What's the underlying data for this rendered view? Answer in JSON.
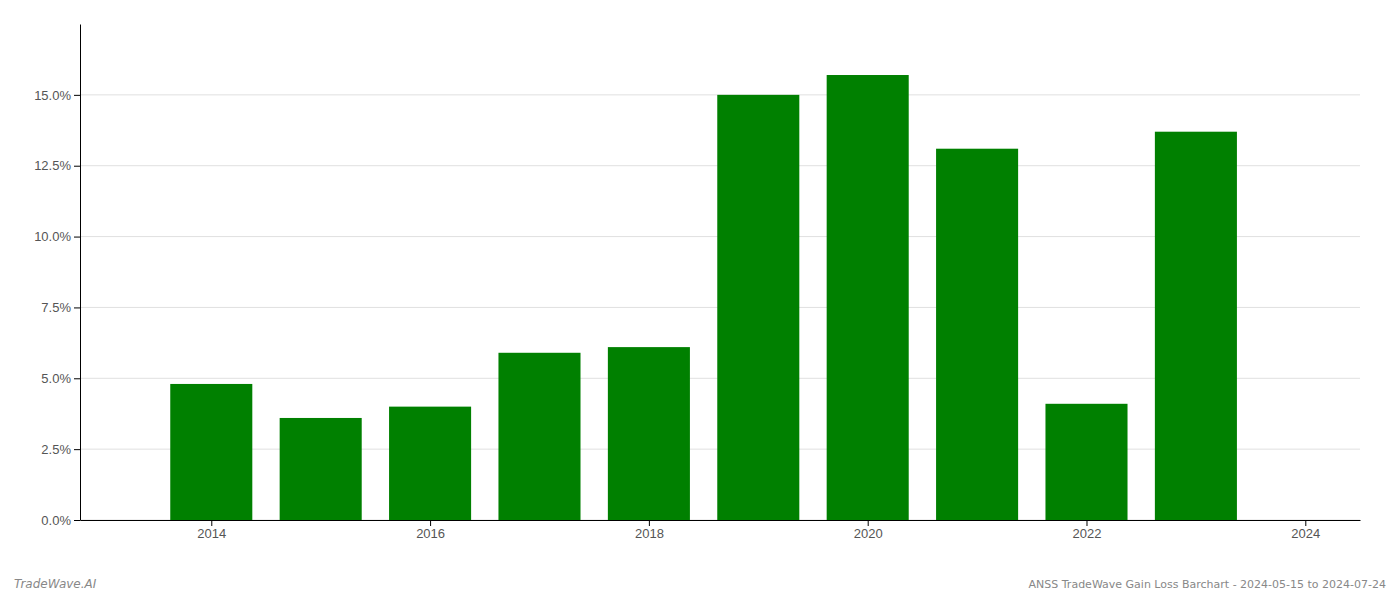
{
  "chart_data": {
    "type": "bar",
    "title": "ANSS TradeWave Gain Loss Barchart - 2024-05-15 to 2024-07-24",
    "annotations": [
      "TradeWave.AI"
    ],
    "x": [
      2014,
      2015,
      2016,
      2017,
      2018,
      2019,
      2020,
      2021,
      2022,
      2023
    ],
    "values": [
      0.048,
      0.036,
      0.04,
      0.059,
      0.061,
      0.15,
      0.157,
      0.131,
      0.041,
      0.137
    ],
    "color": "#008000",
    "xlim": [
      2012.8,
      2024.5
    ],
    "xticks": [
      2014,
      2016,
      2018,
      2020,
      2022,
      2024
    ],
    "ylim": [
      0,
      0.175
    ],
    "yticks": [
      {
        "value": 0.0,
        "label": "0.0%"
      },
      {
        "value": 0.025,
        "label": "2.5%"
      },
      {
        "value": 0.05,
        "label": "5.0%"
      },
      {
        "value": 0.075,
        "label": "7.5%"
      },
      {
        "value": 0.1,
        "label": "10.0%"
      },
      {
        "value": 0.125,
        "label": "12.5%"
      },
      {
        "value": 0.15,
        "label": "15.0%"
      }
    ],
    "grid": true
  }
}
